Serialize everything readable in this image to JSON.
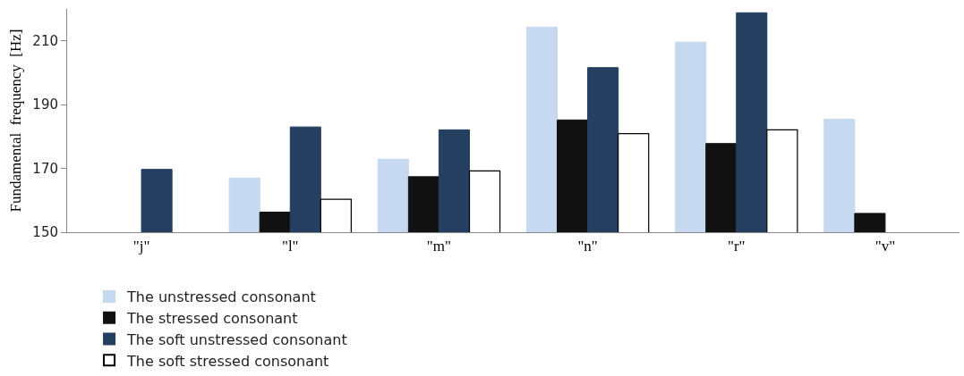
{
  "chart_data": {
    "type": "bar",
    "ylabel": "Fundamental  frequency  [Hz]",
    "categories": [
      "\"j\"",
      "\"l\"",
      "\"m\"",
      "\"n\"",
      "\"r\"",
      "\"v\""
    ],
    "series": [
      {
        "name": "The unstressed consonant",
        "color": "#c6d9f0",
        "values": [
          null,
          167.0,
          172.9,
          214.3,
          209.6,
          185.4
        ]
      },
      {
        "name": "The stressed consonant",
        "color": "#111111",
        "values": [
          null,
          156.3,
          167.4,
          185.2,
          177.8,
          155.9
        ]
      },
      {
        "name": "The soft unstressed consonant",
        "color": "#243f60",
        "values": [
          169.7,
          183.0,
          182.1,
          201.6,
          218.8,
          null
        ]
      },
      {
        "name": "The soft stressed consonant",
        "color": "#ffffff",
        "values": [
          null,
          160.3,
          169.2,
          180.9,
          182.1,
          null
        ]
      }
    ],
    "ylim": [
      150,
      220
    ],
    "yticks": [
      150,
      170,
      190,
      210
    ],
    "legend": "bottom",
    "grid": false
  }
}
